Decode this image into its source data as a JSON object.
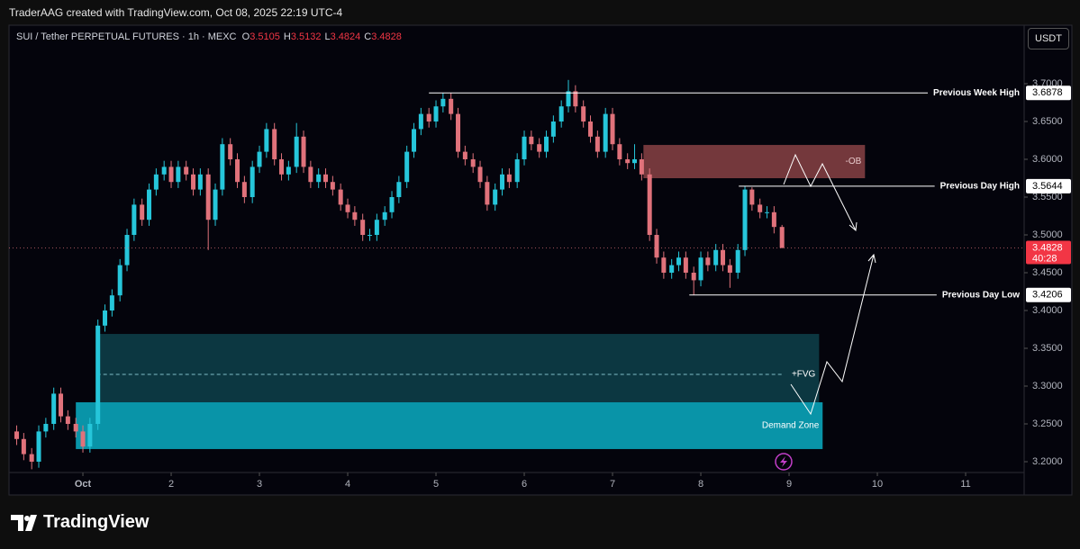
{
  "header": {
    "credit": "TraderAAG created with TradingView.com, Oct 08, 2025 22:19 UTC-4",
    "brand": "TradingView",
    "currency": "USDT"
  },
  "chart_data": {
    "type": "candlestick",
    "title": "SUI / Tether PERPETUAL FUTURES · 1h · MEXC",
    "ohlc_legend": [
      {
        "label": "O",
        "value": 3.5105
      },
      {
        "label": "H",
        "value": 3.5132
      },
      {
        "label": "L",
        "value": 3.4824
      },
      {
        "label": "C",
        "value": 3.4828
      }
    ],
    "x": [
      0.25,
      0.33,
      0.42,
      0.5,
      0.58,
      0.67,
      0.75,
      0.83,
      0.92,
      1.0,
      1.08,
      1.17,
      1.25,
      1.33,
      1.42,
      1.5,
      1.58,
      1.67,
      1.75,
      1.83,
      1.92,
      2.0,
      2.08,
      2.17,
      2.25,
      2.33,
      2.42,
      2.5,
      2.58,
      2.67,
      2.75,
      2.83,
      2.92,
      3.0,
      3.08,
      3.17,
      3.25,
      3.33,
      3.42,
      3.5,
      3.58,
      3.67,
      3.75,
      3.83,
      3.92,
      4.0,
      4.08,
      4.17,
      4.25,
      4.33,
      4.42,
      4.5,
      4.58,
      4.67,
      4.75,
      4.83,
      4.92,
      5.0,
      5.08,
      5.17,
      5.25,
      5.33,
      5.42,
      5.5,
      5.58,
      5.67,
      5.75,
      5.83,
      5.92,
      6.0,
      6.08,
      6.17,
      6.25,
      6.33,
      6.42,
      6.5,
      6.58,
      6.67,
      6.75,
      6.83,
      6.92,
      7.0,
      7.08,
      7.17,
      7.25,
      7.33,
      7.42,
      7.5,
      7.58,
      7.67,
      7.75,
      7.83,
      7.92,
      8.0,
      8.08,
      8.17,
      8.25,
      8.33,
      8.42,
      8.5,
      8.58,
      8.67,
      8.75,
      8.83,
      8.92
    ],
    "open": [
      3.24,
      3.23,
      3.21,
      3.2,
      3.24,
      3.25,
      3.29,
      3.26,
      3.25,
      3.24,
      3.22,
      3.25,
      3.38,
      3.4,
      3.42,
      3.46,
      3.5,
      3.54,
      3.52,
      3.56,
      3.58,
      3.59,
      3.57,
      3.59,
      3.58,
      3.56,
      3.58,
      3.52,
      3.56,
      3.62,
      3.6,
      3.57,
      3.55,
      3.59,
      3.61,
      3.64,
      3.6,
      3.58,
      3.59,
      3.63,
      3.59,
      3.57,
      3.58,
      3.57,
      3.56,
      3.54,
      3.53,
      3.52,
      3.5,
      3.5,
      3.52,
      3.53,
      3.55,
      3.57,
      3.61,
      3.64,
      3.66,
      3.65,
      3.67,
      3.68,
      3.66,
      3.61,
      3.6,
      3.59,
      3.57,
      3.54,
      3.56,
      3.58,
      3.57,
      3.6,
      3.63,
      3.62,
      3.61,
      3.63,
      3.65,
      3.67,
      3.69,
      3.67,
      3.65,
      3.63,
      3.61,
      3.66,
      3.62,
      3.6,
      3.595,
      3.6,
      3.58,
      3.5,
      3.47,
      3.45,
      3.46,
      3.47,
      3.45,
      3.44,
      3.47,
      3.46,
      3.48,
      3.46,
      3.45,
      3.48,
      3.56,
      3.54,
      3.53,
      3.53,
      3.5105
    ],
    "high": [
      3.248,
      3.238,
      3.218,
      3.248,
      3.258,
      3.298,
      3.298,
      3.268,
      3.258,
      3.248,
      3.258,
      3.388,
      3.408,
      3.428,
      3.468,
      3.508,
      3.548,
      3.548,
      3.568,
      3.588,
      3.598,
      3.598,
      3.598,
      3.598,
      3.588,
      3.588,
      3.588,
      3.568,
      3.628,
      3.628,
      3.608,
      3.578,
      3.598,
      3.618,
      3.648,
      3.648,
      3.608,
      3.598,
      3.648,
      3.638,
      3.598,
      3.588,
      3.588,
      3.578,
      3.568,
      3.548,
      3.538,
      3.528,
      3.508,
      3.528,
      3.538,
      3.558,
      3.578,
      3.618,
      3.648,
      3.668,
      3.668,
      3.678,
      3.6878,
      3.688,
      3.668,
      3.618,
      3.608,
      3.598,
      3.578,
      3.568,
      3.588,
      3.588,
      3.608,
      3.638,
      3.638,
      3.628,
      3.638,
      3.658,
      3.678,
      3.705,
      3.698,
      3.678,
      3.658,
      3.638,
      3.668,
      3.668,
      3.628,
      3.608,
      3.62,
      3.608,
      3.588,
      3.508,
      3.478,
      3.468,
      3.478,
      3.478,
      3.458,
      3.478,
      3.478,
      3.488,
      3.488,
      3.468,
      3.488,
      3.5644,
      3.563,
      3.548,
      3.538,
      3.538,
      3.5132
    ],
    "low": [
      3.222,
      3.202,
      3.19,
      3.192,
      3.232,
      3.242,
      3.252,
      3.242,
      3.232,
      3.212,
      3.212,
      3.242,
      3.372,
      3.392,
      3.412,
      3.452,
      3.492,
      3.512,
      3.512,
      3.552,
      3.572,
      3.562,
      3.562,
      3.572,
      3.552,
      3.552,
      3.48,
      3.512,
      3.552,
      3.592,
      3.562,
      3.542,
      3.542,
      3.582,
      3.602,
      3.592,
      3.572,
      3.572,
      3.582,
      3.582,
      3.562,
      3.562,
      3.562,
      3.552,
      3.532,
      3.522,
      3.512,
      3.492,
      3.492,
      3.492,
      3.512,
      3.522,
      3.542,
      3.562,
      3.602,
      3.632,
      3.642,
      3.642,
      3.662,
      3.652,
      3.602,
      3.592,
      3.582,
      3.562,
      3.532,
      3.532,
      3.552,
      3.562,
      3.562,
      3.592,
      3.612,
      3.602,
      3.602,
      3.622,
      3.642,
      3.662,
      3.662,
      3.642,
      3.622,
      3.602,
      3.602,
      3.612,
      3.592,
      3.587,
      3.587,
      3.572,
      3.492,
      3.462,
      3.442,
      3.442,
      3.452,
      3.442,
      3.4206,
      3.432,
      3.452,
      3.452,
      3.452,
      3.43,
      3.442,
      3.472,
      3.532,
      3.522,
      3.522,
      3.502,
      3.4824
    ],
    "close": [
      3.23,
      3.21,
      3.2,
      3.24,
      3.25,
      3.29,
      3.26,
      3.25,
      3.24,
      3.22,
      3.25,
      3.38,
      3.4,
      3.42,
      3.46,
      3.5,
      3.54,
      3.52,
      3.56,
      3.58,
      3.59,
      3.57,
      3.59,
      3.58,
      3.56,
      3.58,
      3.52,
      3.56,
      3.62,
      3.6,
      3.57,
      3.55,
      3.59,
      3.61,
      3.64,
      3.6,
      3.58,
      3.59,
      3.63,
      3.59,
      3.57,
      3.58,
      3.57,
      3.56,
      3.54,
      3.53,
      3.52,
      3.5,
      3.5,
      3.52,
      3.53,
      3.55,
      3.57,
      3.61,
      3.64,
      3.66,
      3.65,
      3.67,
      3.68,
      3.66,
      3.61,
      3.6,
      3.59,
      3.57,
      3.54,
      3.56,
      3.58,
      3.57,
      3.6,
      3.63,
      3.62,
      3.61,
      3.63,
      3.65,
      3.67,
      3.69,
      3.67,
      3.65,
      3.63,
      3.61,
      3.66,
      3.62,
      3.6,
      3.595,
      3.6,
      3.58,
      3.5,
      3.47,
      3.45,
      3.46,
      3.47,
      3.45,
      3.44,
      3.47,
      3.46,
      3.48,
      3.46,
      3.45,
      3.48,
      3.56,
      3.54,
      3.53,
      3.53,
      3.5105,
      3.4828
    ],
    "up_color": "#26c6da",
    "down_color": "#e0727b",
    "xlim": [
      0.163,
      11.663
    ],
    "xticks": [
      {
        "value": 1,
        "label": "Oct"
      },
      2,
      3,
      4,
      5,
      6,
      7,
      8,
      9,
      10,
      11
    ],
    "ylim": [
      3.1857,
      3.7774
    ],
    "yticks": [
      {
        "value": 3.2,
        "label": "3.2000"
      },
      {
        "value": 3.25,
        "label": "3.2500"
      },
      {
        "value": 3.3,
        "label": "3.3000"
      },
      {
        "value": 3.35,
        "label": "3.3500"
      },
      {
        "value": 3.4,
        "label": "3.4000"
      },
      {
        "value": 3.45,
        "label": "3.4500"
      },
      {
        "value": 3.5,
        "label": "3.5000"
      },
      {
        "value": 3.55,
        "label": "3.5500"
      },
      {
        "value": 3.6,
        "label": "3.6000"
      },
      {
        "value": 3.65,
        "label": "3.6500"
      },
      {
        "value": 3.7,
        "label": "3.7000"
      }
    ],
    "last_price": 3.4828,
    "countdown": "40:28",
    "levels": [
      {
        "name": "Previous Week High",
        "value": 3.6878,
        "start": 4.92
      },
      {
        "name": "Previous Day High",
        "value": 3.5644,
        "start": 8.43
      },
      {
        "name": "Previous Day Low",
        "value": 3.4206,
        "start": 7.87
      }
    ],
    "zones": [
      {
        "name": "-OB",
        "x": [
          7.35,
          9.86
        ],
        "y": [
          3.575,
          3.619
        ],
        "color": "#7a3b3f"
      },
      {
        "name": "+FVG",
        "x": [
          1.16,
          9.34
        ],
        "y": [
          3.2786,
          3.369
        ],
        "mid": 3.3155,
        "color": "#0d3a44"
      },
      {
        "name": "Demand Zone",
        "x": [
          0.92,
          9.38
        ],
        "y": [
          3.2167,
          3.2786
        ],
        "color": "#0a9cb1"
      }
    ]
  }
}
